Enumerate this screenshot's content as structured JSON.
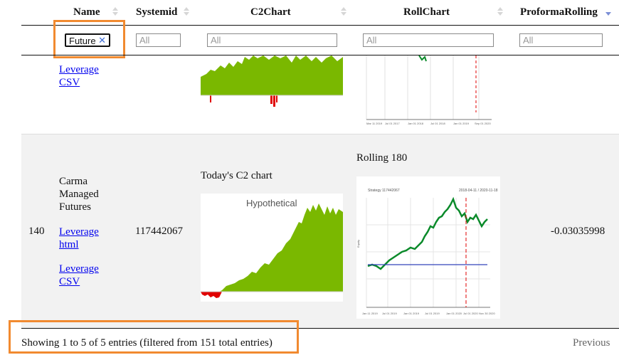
{
  "columns": [
    {
      "name": "Name",
      "sort": "both"
    },
    {
      "name": "Systemid",
      "sort": "both"
    },
    {
      "name": "C2Chart",
      "sort": "both"
    },
    {
      "name": "RollChart",
      "sort": "both"
    },
    {
      "name": "ProformaRolling",
      "sort": "desc"
    }
  ],
  "filters": {
    "name_value": "Future",
    "systemid_placeholder": "All",
    "c2chart_placeholder": "All",
    "rollchart_placeholder": "All",
    "proforma_placeholder": "All"
  },
  "row_partial": {
    "link_leverage": "Leverage",
    "link_csv": "CSV"
  },
  "row_main": {
    "index": "140",
    "name_lines": [
      "Carma",
      "Managed",
      "Futures"
    ],
    "link_html_a": "Leverage",
    "link_html_b": "html",
    "link_csv_a": "Leverage",
    "link_csv_b": "CSV",
    "systemid": "117442067",
    "c2_title": "Today's C2 chart",
    "c2_chart_label": "Hypothetical",
    "roll_title": "Rolling 180",
    "roll_chart_header_left": "Strategy 117442067",
    "roll_chart_header_right": "2018-04-11 / 2020-11-18",
    "roll_y_label": "Equity",
    "roll_x_ticks": [
      "Jan 11 2019",
      "Jul 01 2019",
      "Jan 01 2019",
      "Jul 01 2019",
      "Jan 01 2020",
      "Jul 01 2020",
      "Nov 30 2020"
    ],
    "proforma": "-0.03035998"
  },
  "partial_roll_x_ticks": [
    "Mar 11 2019",
    "Jul 01 2017",
    "Jan 01 2018",
    "Jul 01 2018",
    "Jan 01 2019",
    "Sep 01 2020"
  ],
  "footer": {
    "info": "Showing 1 to 5 of 5 entries (filtered from 151 total entries)",
    "previous": "Previous"
  },
  "colors": {
    "accent_orange": "#f18a30",
    "positive_green": "#7ab800",
    "negative_red": "#e00000",
    "link": "#0000ee"
  }
}
